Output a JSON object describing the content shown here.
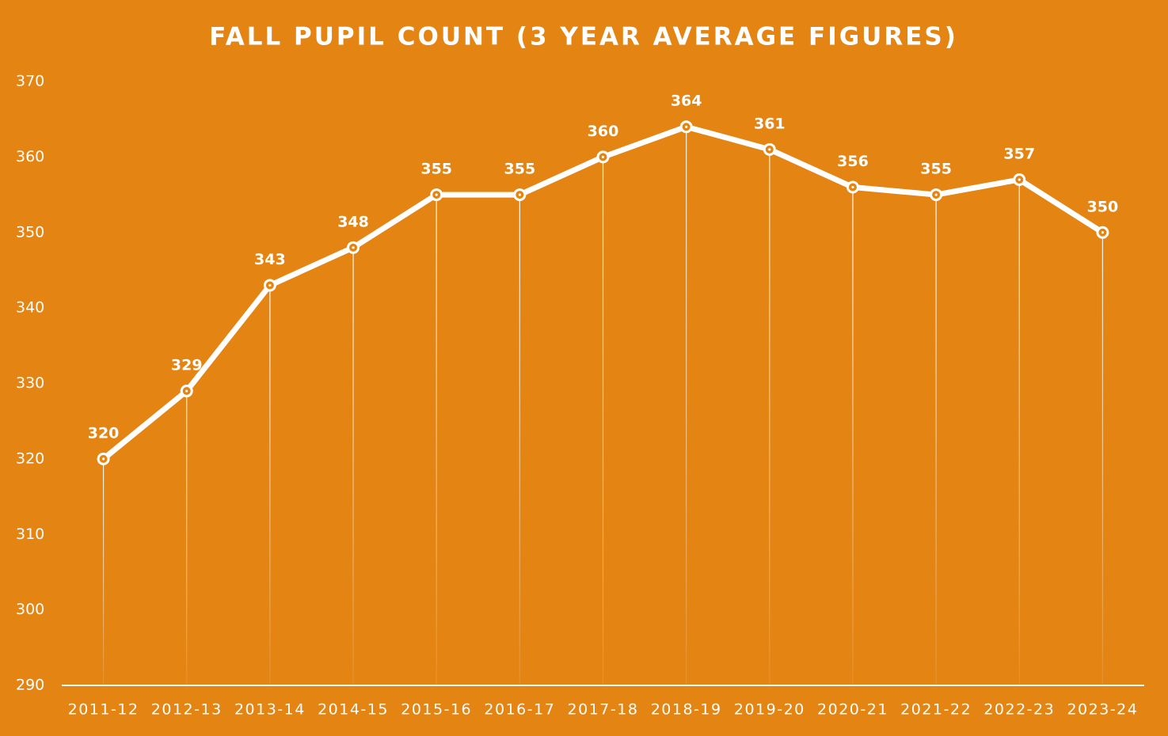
{
  "chart_data": {
    "type": "line",
    "title": "FALL PUPIL COUNT (3 YEAR AVERAGE FIGURES)",
    "categories": [
      "2011-12",
      "2012-13",
      "2013-14",
      "2014-15",
      "2015-16",
      "2016-17",
      "2017-18",
      "2018-19",
      "2019-20",
      "2020-21",
      "2021-22",
      "2022-23",
      "2023-24"
    ],
    "values": [
      320,
      329,
      343,
      348,
      355,
      355,
      360,
      364,
      361,
      356,
      355,
      357,
      350
    ],
    "color": "#ffffff",
    "background": "#e38413",
    "ylim": [
      290,
      370
    ],
    "yticks": [
      290,
      300,
      310,
      320,
      330,
      340,
      350,
      360,
      370
    ],
    "grid": false
  }
}
